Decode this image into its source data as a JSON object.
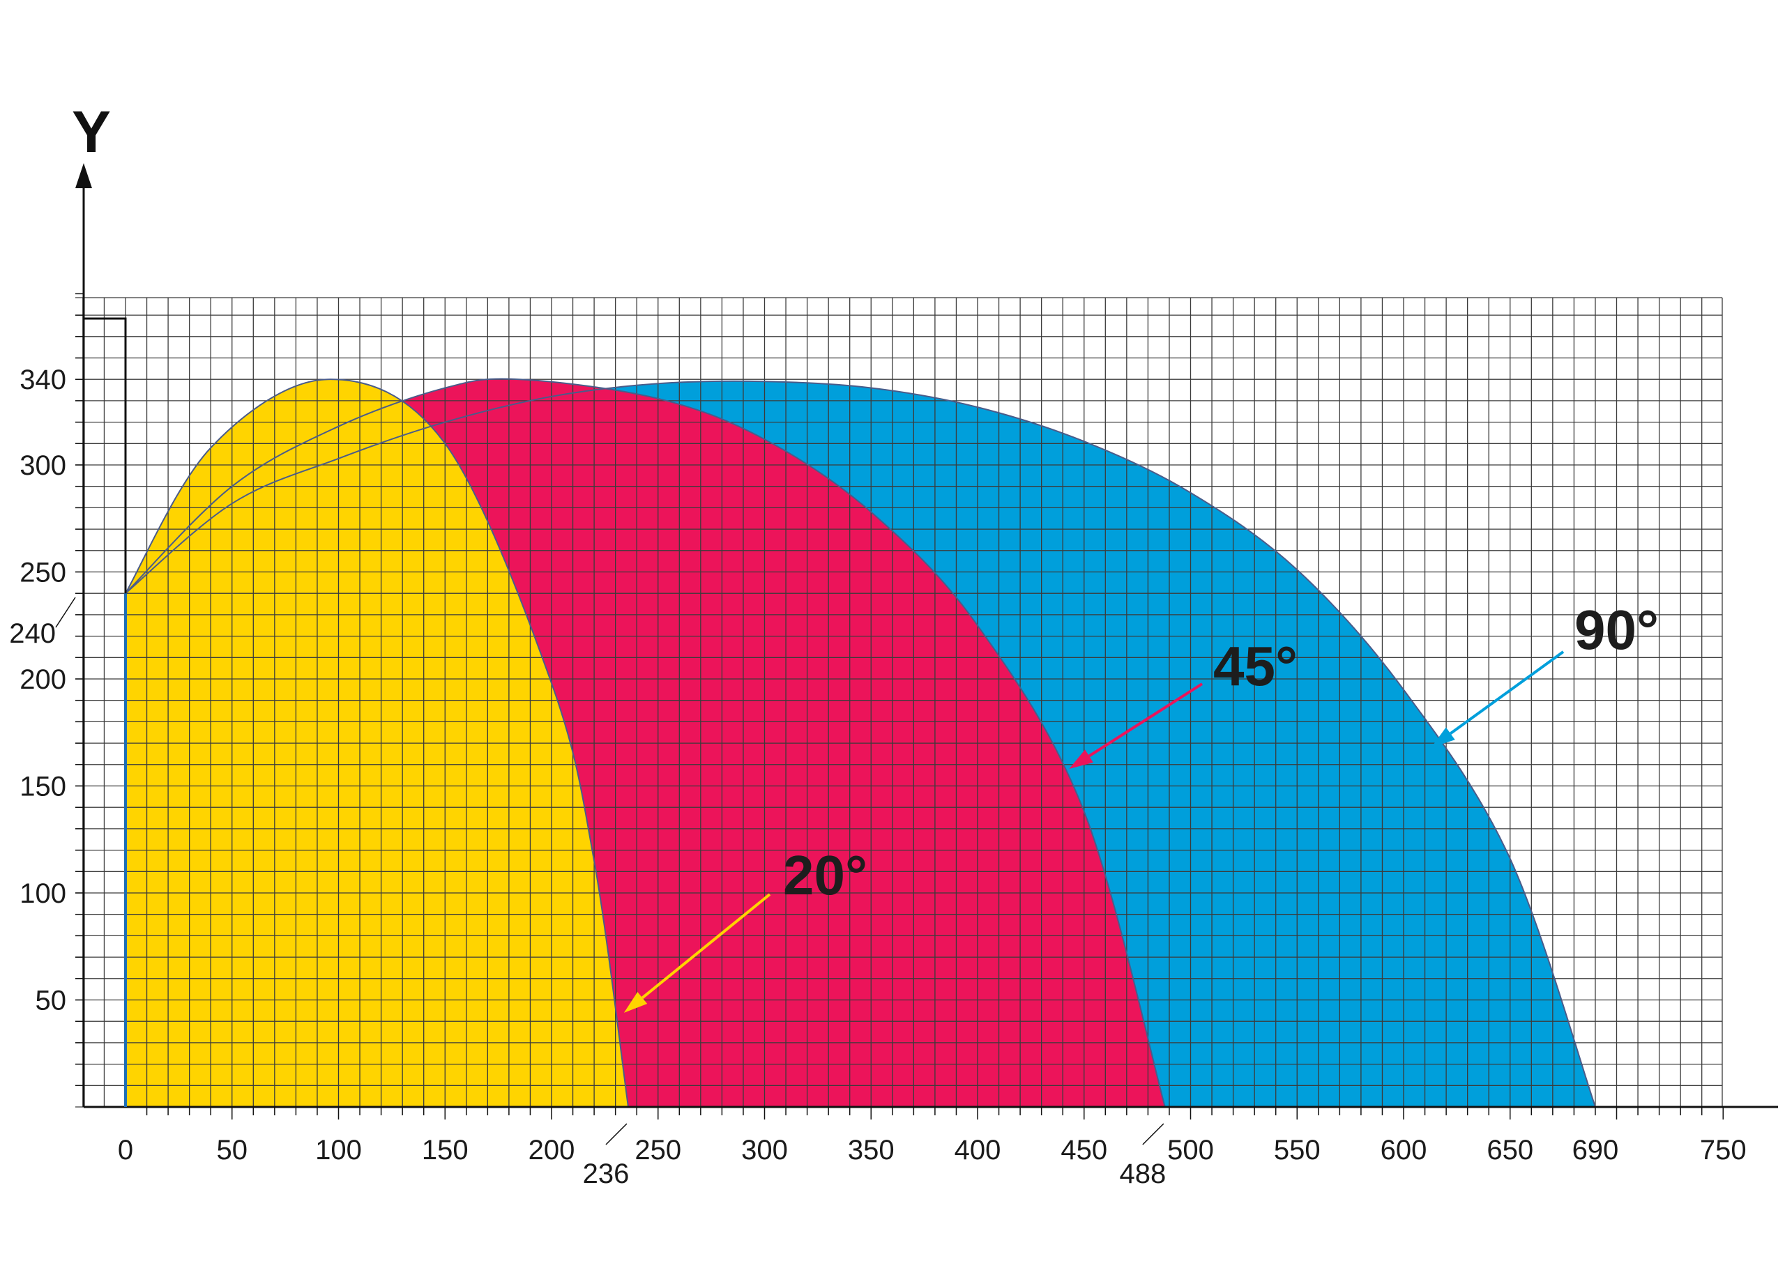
{
  "chart_data": {
    "type": "area",
    "ylabel": "Y",
    "xlabel": "",
    "x_ticks": [
      0,
      50,
      100,
      150,
      200,
      250,
      300,
      350,
      400,
      450,
      500,
      550,
      600,
      650,
      690,
      750
    ],
    "y_ticks": [
      50,
      100,
      150,
      200,
      250,
      300,
      340
    ],
    "extra_x_ticks": [
      236,
      488
    ],
    "extra_y_ticks": [
      240
    ],
    "xlim": [
      0,
      750
    ],
    "ylim": [
      0,
      380
    ],
    "grid": true,
    "series": [
      {
        "name": "90°",
        "color": "#009fdb",
        "x": [
          0,
          50,
          100,
          150,
          200,
          250,
          300,
          350,
          400,
          450,
          500,
          550,
          600,
          650,
          690
        ],
        "y": [
          240,
          282,
          303,
          320,
          332,
          338,
          339,
          336,
          327,
          311,
          287,
          251,
          195,
          116,
          0
        ]
      },
      {
        "name": "45°",
        "color": "#ec145a",
        "x": [
          0,
          50,
          100,
          150,
          185,
          250,
          300,
          350,
          400,
          450,
          488
        ],
        "y": [
          240,
          290,
          318,
          336,
          340,
          331,
          312,
          278,
          225,
          138,
          0
        ]
      },
      {
        "name": "20°",
        "color": "#ffd400",
        "x": [
          0,
          40,
          95,
          150,
          200,
          220,
          236
        ],
        "y": [
          240,
          308,
          340,
          310,
          198,
          115,
          0
        ]
      }
    ],
    "annotations": [
      {
        "text": "20°",
        "target_x": 234,
        "target_y": 44
      },
      {
        "text": "45°",
        "target_x": 443,
        "target_y": 158
      },
      {
        "text": "90°",
        "target_x": 613,
        "target_y": 168
      }
    ]
  }
}
